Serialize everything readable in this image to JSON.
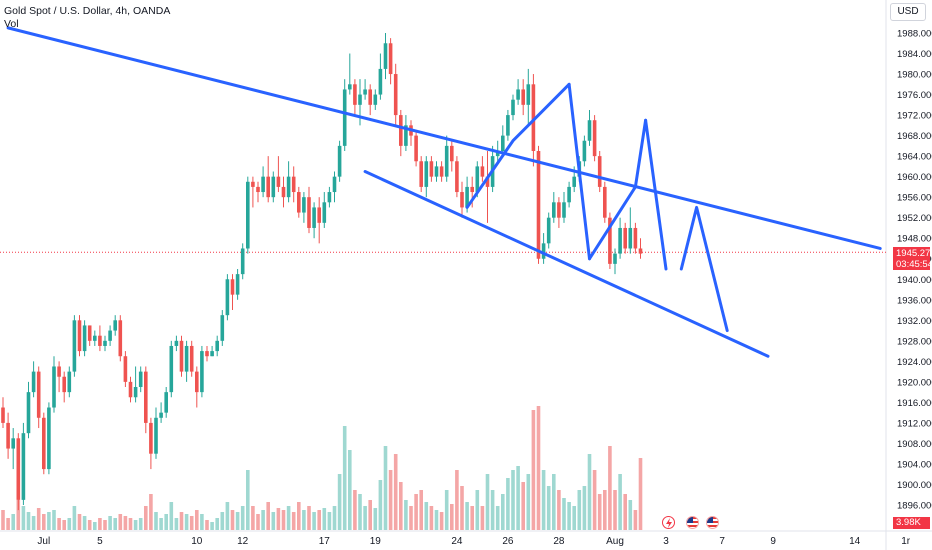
{
  "header": {
    "title": "Gold Spot / U.S. Dollar, 4h, OANDA",
    "volume_label": "Vol"
  },
  "currency_button": "USD",
  "last_price": {
    "value": "1945.270",
    "countdown": "03:45:54"
  },
  "volume_last": "3.98K",
  "colors": {
    "up": "#26a69a",
    "down": "#ef5350",
    "drawing": "#2962ff",
    "price_line": "#f23645",
    "vol_up": "#9fd8d1",
    "vol_down": "#f4a6a6"
  },
  "events": [
    {
      "name": "dividend-lightning-icon"
    },
    {
      "name": "us-flag-event-icon"
    },
    {
      "name": "us-flag-event-icon-2"
    }
  ],
  "chart_data": {
    "type": "candlestick",
    "symbol": "XAUUSD",
    "timeframe": "4h",
    "ylim": [
      1892,
      1990
    ],
    "y_ticks": [
      "1988.000",
      "1984.000",
      "1980.000",
      "1976.000",
      "1972.000",
      "1968.000",
      "1964.000",
      "1960.000",
      "1956.000",
      "1952.000",
      "1948.000",
      "1944.000",
      "1940.000",
      "1936.000",
      "1932.000",
      "1928.000",
      "1924.000",
      "1920.000",
      "1916.000",
      "1912.000",
      "1908.000",
      "1904.000",
      "1900.000",
      "1896.000"
    ],
    "x_ticks": [
      {
        "label": "Jul",
        "index": 8
      },
      {
        "label": "5",
        "index": 19
      },
      {
        "label": "10",
        "index": 38
      },
      {
        "label": "12",
        "index": 47
      },
      {
        "label": "17",
        "index": 63
      },
      {
        "label": "19",
        "index": 73
      },
      {
        "label": "24",
        "index": 89
      },
      {
        "label": "26",
        "index": 99
      },
      {
        "label": "28",
        "index": 109
      },
      {
        "label": "Aug",
        "index": 120
      },
      {
        "label": "3",
        "index": 130
      },
      {
        "label": "7",
        "index": 141
      },
      {
        "label": "9",
        "index": 151
      },
      {
        "label": "14",
        "index": 167
      },
      {
        "label": "1r",
        "index": 177
      }
    ],
    "candles": [
      [
        1915,
        1912,
        1917,
        1911
      ],
      [
        1912,
        1907,
        1914,
        1905
      ],
      [
        1907,
        1909,
        1911,
        1903
      ],
      [
        1909,
        1897,
        1910,
        1895
      ],
      [
        1897,
        1910,
        1912,
        1896
      ],
      [
        1910,
        1918,
        1920,
        1909
      ],
      [
        1918,
        1922,
        1924,
        1917
      ],
      [
        1922,
        1913,
        1923,
        1911
      ],
      [
        1913,
        1903,
        1914,
        1902
      ],
      [
        1903,
        1915,
        1916,
        1902
      ],
      [
        1915,
        1923,
        1925,
        1914
      ],
      [
        1923,
        1921,
        1924,
        1918
      ],
      [
        1921,
        1918,
        1922,
        1916
      ],
      [
        1918,
        1922,
        1923,
        1917
      ],
      [
        1922,
        1932,
        1933,
        1921
      ],
      [
        1932,
        1926,
        1933,
        1925
      ],
      [
        1926,
        1931,
        1932,
        1925
      ],
      [
        1931,
        1928,
        1931,
        1927
      ],
      [
        1928,
        1929,
        1930,
        1927
      ],
      [
        1929,
        1927,
        1931,
        1926
      ],
      [
        1927,
        1928,
        1929,
        1926
      ],
      [
        1928,
        1930,
        1931,
        1927
      ],
      [
        1930,
        1932,
        1933,
        1929
      ],
      [
        1932,
        1925,
        1933,
        1924
      ],
      [
        1925,
        1920,
        1926,
        1919
      ],
      [
        1920,
        1917,
        1921,
        1916
      ],
      [
        1917,
        1919,
        1923,
        1916
      ],
      [
        1919,
        1922,
        1923,
        1918
      ],
      [
        1922,
        1912,
        1923,
        1910
      ],
      [
        1912,
        1906,
        1913,
        1903
      ],
      [
        1906,
        1913,
        1915,
        1905
      ],
      [
        1913,
        1914,
        1916,
        1912
      ],
      [
        1914,
        1918,
        1919,
        1913
      ],
      [
        1918,
        1927,
        1928,
        1917
      ],
      [
        1927,
        1928,
        1929,
        1926
      ],
      [
        1928,
        1922,
        1929,
        1921
      ],
      [
        1922,
        1927,
        1928,
        1920
      ],
      [
        1927,
        1922,
        1928,
        1921
      ],
      [
        1922,
        1918,
        1923,
        1915
      ],
      [
        1918,
        1926,
        1927,
        1917
      ],
      [
        1926,
        1925,
        1927,
        1924
      ],
      [
        1925,
        1926,
        1927,
        1925
      ],
      [
        1926,
        1928,
        1929,
        1925
      ],
      [
        1928,
        1933,
        1934,
        1927
      ],
      [
        1933,
        1940,
        1941,
        1932
      ],
      [
        1940,
        1937,
        1941,
        1934
      ],
      [
        1937,
        1941,
        1942,
        1936
      ],
      [
        1941,
        1946,
        1947,
        1940
      ],
      [
        1946,
        1959,
        1960,
        1945
      ],
      [
        1959,
        1958,
        1960,
        1954
      ],
      [
        1958,
        1957,
        1959,
        1955
      ],
      [
        1957,
        1960,
        1962,
        1956
      ],
      [
        1960,
        1956,
        1964,
        1955
      ],
      [
        1956,
        1960,
        1961,
        1955
      ],
      [
        1960,
        1958,
        1964,
        1957
      ],
      [
        1958,
        1956,
        1960,
        1954
      ],
      [
        1956,
        1960,
        1963,
        1955
      ],
      [
        1960,
        1957,
        1962,
        1955
      ],
      [
        1957,
        1953,
        1958,
        1952
      ],
      [
        1953,
        1956,
        1957,
        1951
      ],
      [
        1956,
        1950,
        1958,
        1949
      ],
      [
        1950,
        1954,
        1955,
        1948
      ],
      [
        1954,
        1951,
        1956,
        1947
      ],
      [
        1951,
        1955,
        1957,
        1950
      ],
      [
        1955,
        1957,
        1958,
        1954
      ],
      [
        1957,
        1960,
        1961,
        1955
      ],
      [
        1960,
        1966,
        1967,
        1959
      ],
      [
        1966,
        1977,
        1979,
        1965
      ],
      [
        1977,
        1978,
        1984,
        1976
      ],
      [
        1978,
        1974,
        1979,
        1972
      ],
      [
        1974,
        1976,
        1979,
        1970
      ],
      [
        1976,
        1977,
        1979,
        1975
      ],
      [
        1977,
        1974,
        1978,
        1972
      ],
      [
        1974,
        1976,
        1977,
        1973
      ],
      [
        1976,
        1981,
        1984,
        1975
      ],
      [
        1981,
        1986,
        1988,
        1979
      ],
      [
        1986,
        1980,
        1987,
        1978
      ],
      [
        1980,
        1972,
        1982,
        1970
      ],
      [
        1972,
        1966,
        1973,
        1964
      ],
      [
        1966,
        1970,
        1972,
        1965
      ],
      [
        1970,
        1968,
        1971,
        1966
      ],
      [
        1968,
        1963,
        1969,
        1962
      ],
      [
        1963,
        1958,
        1964,
        1957
      ],
      [
        1958,
        1963,
        1964,
        1956
      ],
      [
        1963,
        1960,
        1964,
        1959
      ],
      [
        1960,
        1962,
        1963,
        1959
      ],
      [
        1962,
        1960,
        1963,
        1959
      ],
      [
        1960,
        1966,
        1968,
        1959
      ],
      [
        1966,
        1963,
        1967,
        1961
      ],
      [
        1963,
        1957,
        1964,
        1956
      ],
      [
        1957,
        1954,
        1959,
        1952
      ],
      [
        1954,
        1958,
        1960,
        1953
      ],
      [
        1958,
        1957,
        1960,
        1954
      ],
      [
        1957,
        1962,
        1963,
        1956
      ],
      [
        1962,
        1960,
        1964,
        1959
      ],
      [
        1960,
        1958,
        1965,
        1951
      ],
      [
        1958,
        1964,
        1966,
        1957
      ],
      [
        1964,
        1965,
        1967,
        1963
      ],
      [
        1965,
        1968,
        1970,
        1964
      ],
      [
        1968,
        1972,
        1973,
        1967
      ],
      [
        1972,
        1975,
        1976,
        1971
      ],
      [
        1975,
        1977,
        1979,
        1974
      ],
      [
        1977,
        1974,
        1979,
        1972
      ],
      [
        1974,
        1978,
        1981,
        1970
      ],
      [
        1978,
        1965,
        1980,
        1962
      ],
      [
        1965,
        1944,
        1966,
        1943
      ],
      [
        1944,
        1947,
        1949,
        1943
      ],
      [
        1947,
        1952,
        1953,
        1946
      ],
      [
        1952,
        1955,
        1957,
        1951
      ],
      [
        1955,
        1952,
        1956,
        1950
      ],
      [
        1952,
        1955,
        1957,
        1951
      ],
      [
        1955,
        1958,
        1959,
        1954
      ],
      [
        1958,
        1960,
        1962,
        1957
      ],
      [
        1960,
        1963,
        1964,
        1959
      ],
      [
        1963,
        1967,
        1968,
        1962
      ],
      [
        1967,
        1971,
        1973,
        1966
      ],
      [
        1971,
        1964,
        1972,
        1963
      ],
      [
        1964,
        1958,
        1965,
        1957
      ],
      [
        1958,
        1952,
        1959,
        1951
      ],
      [
        1952,
        1943,
        1953,
        1942
      ],
      [
        1943,
        1945,
        1946,
        1941
      ],
      [
        1945,
        1950,
        1952,
        1944
      ],
      [
        1950,
        1946,
        1951,
        1945
      ],
      [
        1946,
        1950,
        1954,
        1945
      ],
      [
        1950,
        1946,
        1951,
        1945
      ],
      [
        1946,
        1945,
        1948,
        1944
      ]
    ],
    "volume": [
      [
        10,
        "down"
      ],
      [
        6,
        "down"
      ],
      [
        8,
        "up"
      ],
      [
        15,
        "down"
      ],
      [
        12,
        "up"
      ],
      [
        9,
        "up"
      ],
      [
        7,
        "up"
      ],
      [
        11,
        "down"
      ],
      [
        8,
        "down"
      ],
      [
        9,
        "up"
      ],
      [
        10,
        "up"
      ],
      [
        6,
        "down"
      ],
      [
        5,
        "down"
      ],
      [
        6,
        "up"
      ],
      [
        12,
        "up"
      ],
      [
        8,
        "down"
      ],
      [
        7,
        "up"
      ],
      [
        5,
        "down"
      ],
      [
        4,
        "up"
      ],
      [
        6,
        "down"
      ],
      [
        5,
        "down"
      ],
      [
        7,
        "up"
      ],
      [
        6,
        "up"
      ],
      [
        8,
        "down"
      ],
      [
        7,
        "down"
      ],
      [
        6,
        "down"
      ],
      [
        5,
        "up"
      ],
      [
        6,
        "up"
      ],
      [
        12,
        "down"
      ],
      [
        18,
        "down"
      ],
      [
        9,
        "up"
      ],
      [
        6,
        "up"
      ],
      [
        8,
        "up"
      ],
      [
        14,
        "up"
      ],
      [
        6,
        "up"
      ],
      [
        9,
        "down"
      ],
      [
        8,
        "up"
      ],
      [
        7,
        "down"
      ],
      [
        10,
        "down"
      ],
      [
        8,
        "up"
      ],
      [
        5,
        "down"
      ],
      [
        4,
        "up"
      ],
      [
        6,
        "up"
      ],
      [
        9,
        "up"
      ],
      [
        14,
        "up"
      ],
      [
        10,
        "down"
      ],
      [
        9,
        "up"
      ],
      [
        12,
        "up"
      ],
      [
        30,
        "up"
      ],
      [
        12,
        "down"
      ],
      [
        8,
        "down"
      ],
      [
        10,
        "up"
      ],
      [
        14,
        "down"
      ],
      [
        9,
        "up"
      ],
      [
        11,
        "down"
      ],
      [
        10,
        "down"
      ],
      [
        12,
        "up"
      ],
      [
        9,
        "down"
      ],
      [
        14,
        "down"
      ],
      [
        10,
        "up"
      ],
      [
        12,
        "down"
      ],
      [
        9,
        "up"
      ],
      [
        10,
        "down"
      ],
      [
        11,
        "up"
      ],
      [
        9,
        "up"
      ],
      [
        12,
        "up"
      ],
      [
        28,
        "up"
      ],
      [
        52,
        "up"
      ],
      [
        40,
        "up"
      ],
      [
        20,
        "down"
      ],
      [
        18,
        "up"
      ],
      [
        12,
        "up"
      ],
      [
        15,
        "down"
      ],
      [
        11,
        "up"
      ],
      [
        25,
        "up"
      ],
      [
        42,
        "up"
      ],
      [
        30,
        "down"
      ],
      [
        38,
        "down"
      ],
      [
        24,
        "down"
      ],
      [
        15,
        "up"
      ],
      [
        12,
        "down"
      ],
      [
        18,
        "down"
      ],
      [
        20,
        "down"
      ],
      [
        14,
        "up"
      ],
      [
        12,
        "down"
      ],
      [
        10,
        "up"
      ],
      [
        9,
        "down"
      ],
      [
        20,
        "up"
      ],
      [
        13,
        "down"
      ],
      [
        30,
        "down"
      ],
      [
        22,
        "down"
      ],
      [
        14,
        "up"
      ],
      [
        12,
        "down"
      ],
      [
        20,
        "up"
      ],
      [
        12,
        "down"
      ],
      [
        28,
        "up"
      ],
      [
        20,
        "up"
      ],
      [
        12,
        "up"
      ],
      [
        18,
        "up"
      ],
      [
        26,
        "up"
      ],
      [
        30,
        "up"
      ],
      [
        32,
        "up"
      ],
      [
        24,
        "down"
      ],
      [
        28,
        "up"
      ],
      [
        60,
        "down"
      ],
      [
        62,
        "down"
      ],
      [
        30,
        "up"
      ],
      [
        22,
        "up"
      ],
      [
        28,
        "up"
      ],
      [
        20,
        "down"
      ],
      [
        16,
        "up"
      ],
      [
        14,
        "up"
      ],
      [
        12,
        "up"
      ],
      [
        20,
        "up"
      ],
      [
        22,
        "up"
      ],
      [
        38,
        "up"
      ],
      [
        30,
        "down"
      ],
      [
        18,
        "down"
      ],
      [
        20,
        "down"
      ],
      [
        42,
        "down"
      ],
      [
        20,
        "down"
      ],
      [
        28,
        "up"
      ],
      [
        18,
        "down"
      ],
      [
        15,
        "up"
      ],
      [
        10,
        "down"
      ],
      [
        36,
        "down"
      ]
    ],
    "drawings": {
      "channel_upper": [
        [
          1,
          1989
        ],
        [
          172,
          1946
        ]
      ],
      "channel_lower": [
        [
          71,
          1961
        ],
        [
          150,
          1925
        ]
      ],
      "path_up_1": [
        [
          91,
          1954
        ],
        [
          100,
          1967
        ],
        [
          111,
          1978
        ]
      ],
      "path_down_1": [
        [
          111,
          1978
        ],
        [
          115,
          1944
        ]
      ],
      "path_up_2": [
        [
          115,
          1944
        ],
        [
          124,
          1958
        ],
        [
          126,
          1971
        ]
      ],
      "path_down_2": [
        [
          126,
          1971
        ],
        [
          130,
          1942
        ]
      ],
      "path_tail": [
        [
          133,
          1942
        ],
        [
          136,
          1954
        ],
        [
          142,
          1930
        ]
      ]
    }
  }
}
